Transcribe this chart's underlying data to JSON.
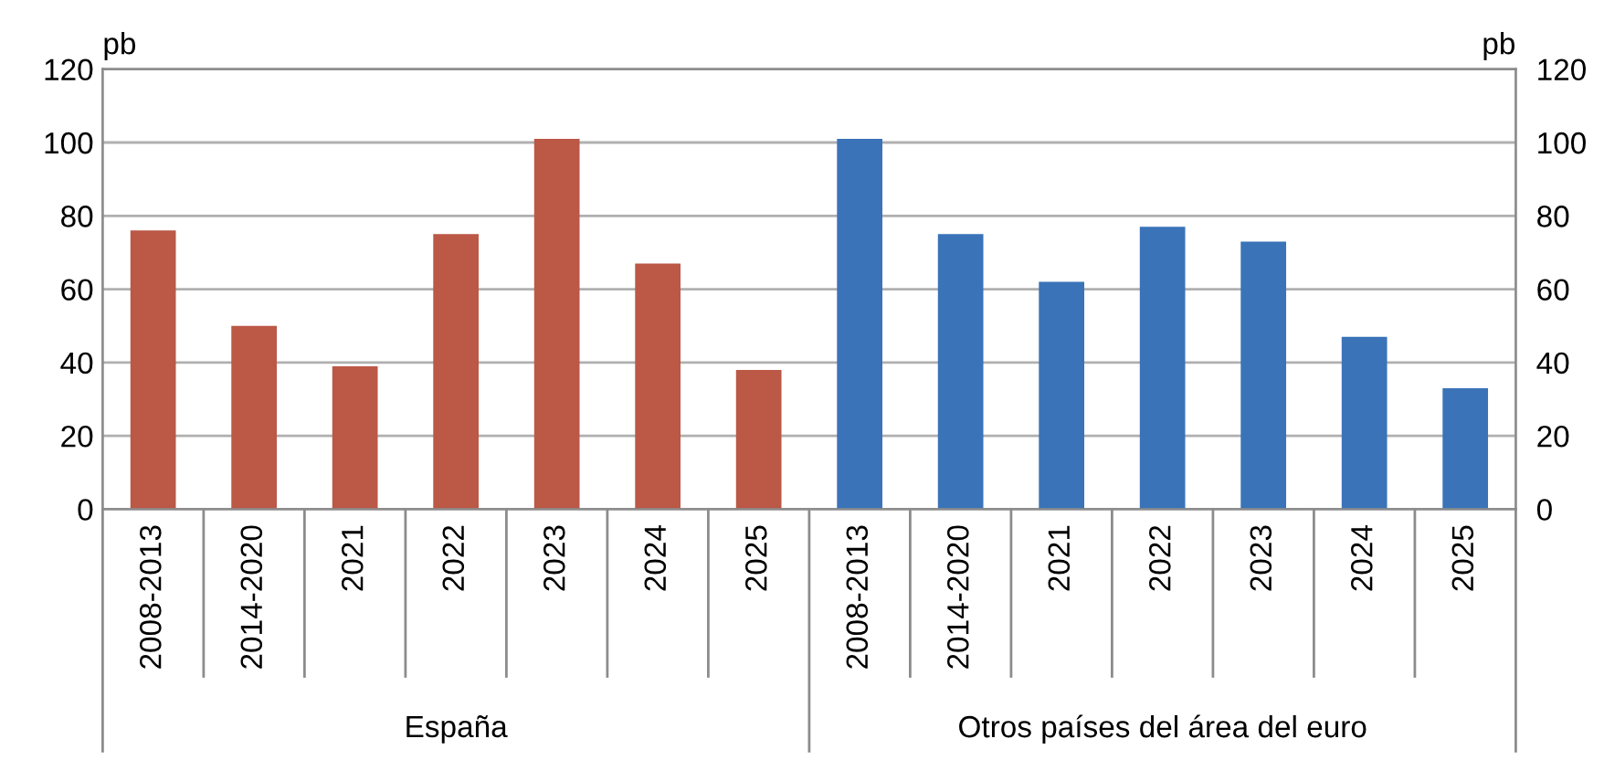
{
  "chart_data": {
    "type": "bar",
    "categories": [
      "2008-2013",
      "2014-2020",
      "2021",
      "2022",
      "2023",
      "2024",
      "2025",
      "2008-2013",
      "2014-2020",
      "2021",
      "2022",
      "2023",
      "2024",
      "2025"
    ],
    "values": [
      76,
      50,
      39,
      75,
      101,
      67,
      38,
      101,
      75,
      62,
      77,
      73,
      47,
      33
    ],
    "colors": [
      "#bb5846",
      "#bb5846",
      "#bb5846",
      "#bb5846",
      "#bb5846",
      "#bb5846",
      "#bb5846",
      "#3a73b8",
      "#3a73b8",
      "#3a73b8",
      "#3a73b8",
      "#3a73b8",
      "#3a73b8",
      "#3a73b8"
    ],
    "ylabel": "pb",
    "y2label": "pb",
    "ylim": [
      0,
      120
    ],
    "yticks": [
      0,
      20,
      40,
      60,
      80,
      100,
      120
    ],
    "y2lim": [
      0,
      120
    ],
    "y2ticks": [
      0,
      20,
      40,
      60,
      80,
      100,
      120
    ],
    "annotations": [
      "España",
      "Otros países del área del euro"
    ],
    "grid": "y",
    "legend": false
  }
}
